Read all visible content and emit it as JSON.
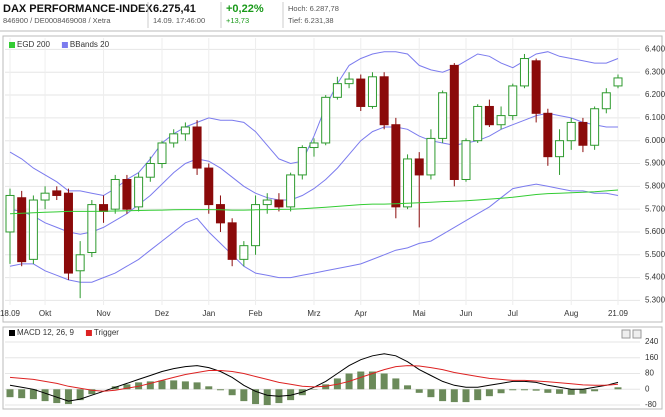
{
  "header": {
    "name": "DAX PERFORMANCE-INDEX",
    "ids": "846900 / DE0008469008 / Xetra",
    "price": "6.275,41",
    "time": "14.09. 17:46:00",
    "change_pct": "+0,22%",
    "change_abs": "+13,73",
    "high": "Hoch: 6.287,78",
    "low": "Tief: 6.231,38"
  },
  "chart_data": [
    {
      "type": "candlestick",
      "categories": [
        "18.09",
        null,
        null,
        "Okt",
        null,
        null,
        null,
        null,
        "Nov",
        null,
        null,
        null,
        null,
        "Dez",
        null,
        null,
        null,
        "Jan",
        null,
        null,
        null,
        "Feb",
        null,
        null,
        null,
        null,
        "Mrz",
        null,
        null,
        null,
        "Apr",
        null,
        null,
        null,
        null,
        "Mai",
        null,
        null,
        null,
        "Jun",
        null,
        null,
        null,
        "Jul",
        null,
        null,
        null,
        null,
        "Aug",
        null,
        null,
        null,
        "21.09"
      ],
      "open": [
        5600,
        5750,
        5480,
        5740,
        5780,
        5770,
        5430,
        5510,
        5720,
        5700,
        5830,
        5710,
        5840,
        5900,
        5990,
        6030,
        6060,
        5880,
        5720,
        5640,
        5480,
        5540,
        5720,
        5740,
        5710,
        5850,
        5970,
        5990,
        6190,
        6250,
        6270,
        6150,
        6280,
        6070,
        5710,
        5920,
        5850,
        6010,
        6330,
        5830,
        6000,
        6150,
        6070,
        6110,
        6240,
        6350,
        6120,
        5930,
        6000,
        6080,
        5980,
        6140,
        6240
      ],
      "high": [
        5790,
        5780,
        5760,
        5800,
        5800,
        5790,
        5560,
        5740,
        5760,
        5850,
        5850,
        5860,
        5930,
        6000,
        6050,
        6080,
        6090,
        5900,
        5760,
        5660,
        5560,
        5760,
        5770,
        5770,
        5860,
        5980,
        6010,
        6200,
        6280,
        6300,
        6290,
        6300,
        6300,
        6100,
        5940,
        5950,
        6050,
        6220,
        6340,
        6010,
        6160,
        6180,
        6150,
        6250,
        6380,
        6360,
        6140,
        6050,
        6100,
        6100,
        6150,
        6230,
        6290
      ],
      "low": [
        5460,
        5450,
        5460,
        5700,
        5740,
        5390,
        5310,
        5490,
        5640,
        5680,
        5680,
        5690,
        5820,
        5880,
        5970,
        6000,
        5850,
        5680,
        5600,
        5450,
        5450,
        5500,
        5680,
        5690,
        5690,
        5830,
        5930,
        5980,
        6180,
        6230,
        6130,
        6140,
        6050,
        5660,
        5700,
        5620,
        5830,
        5990,
        5800,
        5820,
        5990,
        6060,
        6050,
        6090,
        6230,
        6080,
        5890,
        5850,
        5960,
        5950,
        5960,
        6120,
        6230
      ],
      "close": [
        5760,
        5470,
        5740,
        5770,
        5760,
        5420,
        5500,
        5720,
        5690,
        5830,
        5700,
        5840,
        5900,
        5990,
        6030,
        6060,
        5880,
        5720,
        5640,
        5480,
        5540,
        5720,
        5740,
        5710,
        5850,
        5970,
        5990,
        6190,
        6250,
        6270,
        6150,
        6280,
        6070,
        5710,
        5920,
        5850,
        6010,
        6210,
        5830,
        6000,
        6150,
        6070,
        6110,
        6240,
        6360,
        6120,
        5930,
        6000,
        6080,
        5980,
        6140,
        6210,
        6275
      ],
      "up_color": "#2e9a2e",
      "down_color": "#8b0a0a",
      "series": [
        {
          "name": "EGD 200",
          "color": "#33cc33",
          "values": [
            5680,
            5682,
            5684,
            5686,
            5688,
            5690,
            5690,
            5690,
            5691,
            5692,
            5693,
            5694,
            5695,
            5696,
            5697,
            5698,
            5698,
            5698,
            5697,
            5696,
            5696,
            5697,
            5698,
            5699,
            5700,
            5702,
            5705,
            5708,
            5712,
            5716,
            5720,
            5722,
            5722,
            5724,
            5726,
            5728,
            5730,
            5733,
            5735,
            5737,
            5740,
            5744,
            5748,
            5752,
            5758,
            5764,
            5768,
            5770,
            5772,
            5774,
            5776,
            5780,
            5784
          ]
        },
        {
          "name": "BBands 20",
          "color": "#7b7bee",
          "upper": [
            5950,
            5920,
            5880,
            5850,
            5820,
            5780,
            5780,
            5770,
            5760,
            5790,
            5830,
            5860,
            5920,
            5990,
            6030,
            6060,
            6080,
            6100,
            6090,
            6090,
            6080,
            6040,
            5980,
            5920,
            5900,
            5910,
            6020,
            6150,
            6250,
            6330,
            6360,
            6380,
            6390,
            6390,
            6380,
            6330,
            6310,
            6300,
            6320,
            6350,
            6380,
            6370,
            6340,
            6320,
            6350,
            6380,
            6390,
            6370,
            6360,
            6350,
            6340,
            6340,
            6360
          ],
          "middle": [
            5700,
            5690,
            5670,
            5640,
            5620,
            5600,
            5590,
            5600,
            5620,
            5650,
            5680,
            5720,
            5760,
            5810,
            5860,
            5900,
            5920,
            5910,
            5880,
            5840,
            5800,
            5770,
            5750,
            5740,
            5740,
            5760,
            5790,
            5830,
            5880,
            5940,
            6000,
            6040,
            6060,
            6060,
            6050,
            6020,
            6000,
            5990,
            5980,
            5990,
            6000,
            6020,
            6050,
            6070,
            6090,
            6110,
            6120,
            6110,
            6100,
            6080,
            6070,
            6060,
            6060
          ],
          "lower": [
            5450,
            5460,
            5460,
            5430,
            5410,
            5390,
            5380,
            5380,
            5400,
            5420,
            5450,
            5480,
            5520,
            5560,
            5600,
            5640,
            5660,
            5600,
            5550,
            5500,
            5450,
            5420,
            5410,
            5400,
            5400,
            5410,
            5420,
            5430,
            5440,
            5450,
            5460,
            5480,
            5500,
            5520,
            5530,
            5550,
            5560,
            5590,
            5620,
            5650,
            5680,
            5710,
            5750,
            5790,
            5800,
            5810,
            5800,
            5790,
            5780,
            5780,
            5770,
            5770,
            5760
          ]
        }
      ],
      "ylim": [
        5280,
        6450
      ],
      "yticks": [
        {
          "value": 5300,
          "label": "5.300"
        },
        {
          "value": 5400,
          "label": "5.400"
        },
        {
          "value": 5500,
          "label": "5.500"
        },
        {
          "value": 5600,
          "label": "5.600"
        },
        {
          "value": 5700,
          "label": "5.700"
        },
        {
          "value": 5800,
          "label": "5.800"
        },
        {
          "value": 5900,
          "label": "5.900"
        },
        {
          "value": 6000,
          "label": "6.000"
        },
        {
          "value": 6100,
          "label": "6.100"
        },
        {
          "value": 6200,
          "label": "6.200"
        },
        {
          "value": 6300,
          "label": "6.300"
        },
        {
          "value": 6400,
          "label": "6.400"
        }
      ],
      "grid": true
    },
    {
      "type": "macd",
      "series": [
        {
          "name": "MACD 12, 26, 9",
          "color": "#000000",
          "values": [
            20,
            10,
            0,
            -20,
            -40,
            -60,
            -50,
            -30,
            -10,
            10,
            30,
            50,
            70,
            90,
            105,
            115,
            120,
            110,
            90,
            60,
            20,
            -10,
            -30,
            -35,
            -30,
            -15,
            10,
            40,
            80,
            120,
            150,
            170,
            180,
            170,
            140,
            100,
            70,
            40,
            20,
            10,
            10,
            20,
            30,
            40,
            40,
            35,
            20,
            10,
            0,
            0,
            10,
            20,
            35
          ]
        },
        {
          "name": "Trigger",
          "color": "#dd2222",
          "values": [
            60,
            55,
            50,
            40,
            30,
            15,
            5,
            -5,
            -10,
            -5,
            5,
            15,
            30,
            45,
            60,
            75,
            85,
            95,
            95,
            90,
            80,
            65,
            50,
            35,
            25,
            15,
            12,
            15,
            25,
            40,
            60,
            80,
            100,
            115,
            120,
            118,
            110,
            100,
            85,
            75,
            65,
            55,
            50,
            45,
            45,
            42,
            38,
            33,
            28,
            22,
            20,
            20,
            25
          ]
        }
      ],
      "histogram": {
        "color": "#6b8a5a",
        "values": [
          -40,
          -45,
          -50,
          -60,
          -70,
          -75,
          -55,
          -25,
          0,
          15,
          25,
          35,
          40,
          45,
          45,
          40,
          35,
          15,
          -5,
          -30,
          -60,
          -75,
          -80,
          -70,
          -55,
          -30,
          -2,
          25,
          55,
          80,
          90,
          90,
          80,
          55,
          20,
          -18,
          -40,
          -60,
          -65,
          -65,
          -55,
          -35,
          -20,
          -5,
          -5,
          -7,
          -18,
          -23,
          -28,
          -22,
          -10,
          0,
          10
        ]
      },
      "ylim": [
        -100,
        260
      ],
      "yticks": [
        -80,
        0,
        80,
        160,
        240
      ],
      "grid": true
    }
  ]
}
